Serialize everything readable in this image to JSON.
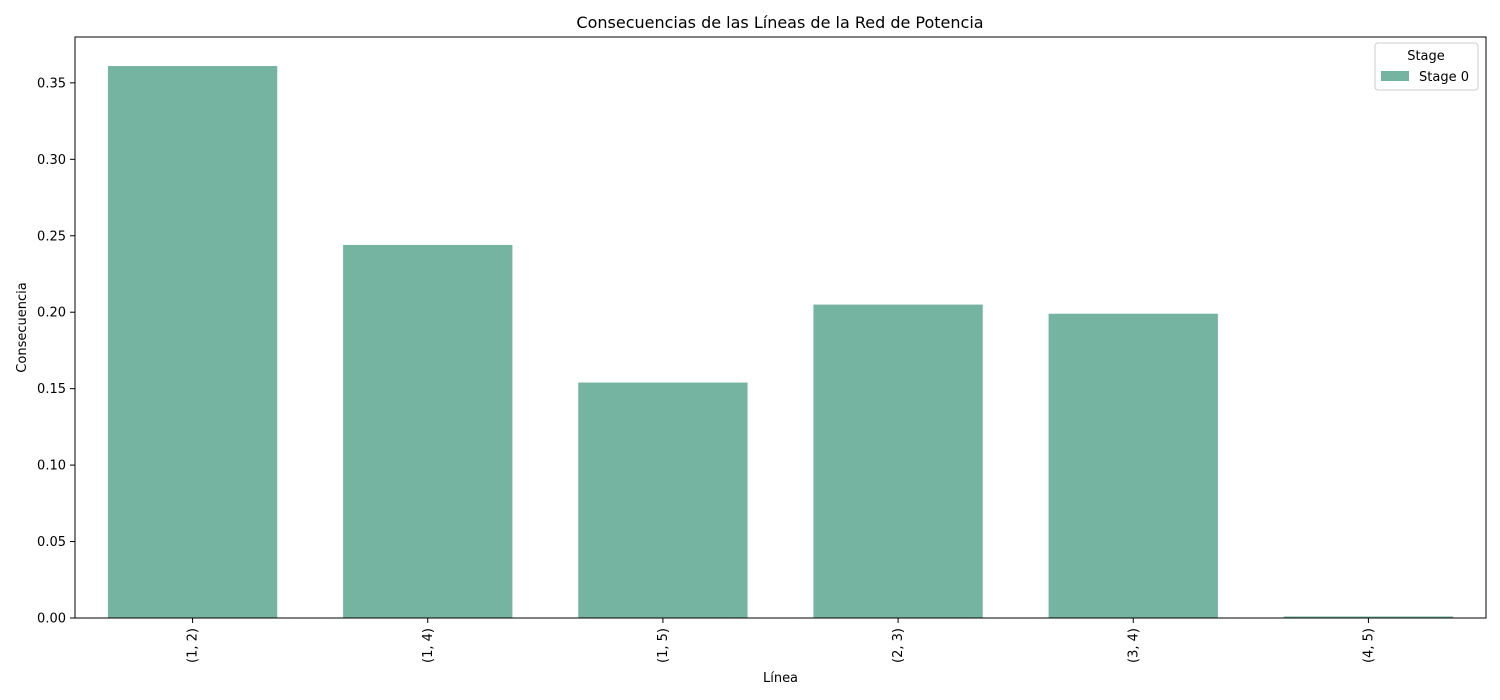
{
  "chart_data": {
    "type": "bar",
    "title": "Consecuencias de las Líneas de la Red de Potencia",
    "xlabel": "Línea",
    "ylabel": "Consecuencia",
    "categories": [
      "(1, 2)",
      "(1, 4)",
      "(1, 5)",
      "(2, 3)",
      "(3, 4)",
      "(4, 5)"
    ],
    "series": [
      {
        "name": "Stage 0",
        "values": [
          0.361,
          0.244,
          0.154,
          0.205,
          0.199,
          0.001
        ],
        "color": "#74b4a0"
      }
    ],
    "ylim": [
      0,
      0.38
    ],
    "yticks": [
      0.0,
      0.05,
      0.1,
      0.15,
      0.2,
      0.25,
      0.3,
      0.35
    ],
    "ytick_labels": [
      "0.00",
      "0.05",
      "0.10",
      "0.15",
      "0.20",
      "0.25",
      "0.30",
      "0.35"
    ],
    "grid": false,
    "legend": {
      "title": "Stage",
      "placement": "top-right"
    }
  }
}
